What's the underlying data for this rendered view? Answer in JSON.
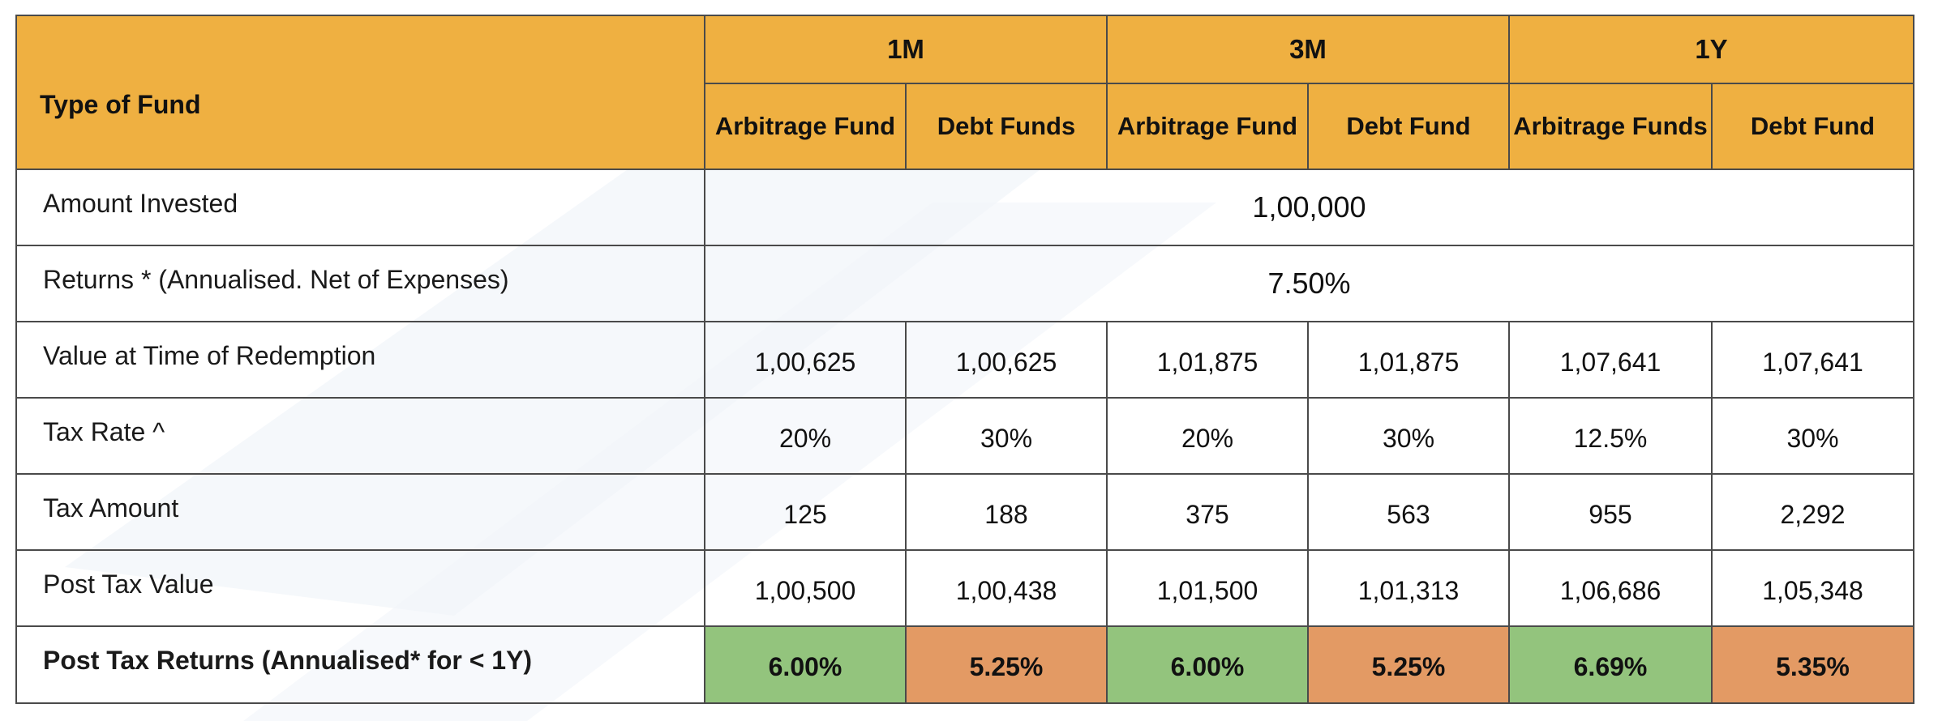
{
  "colors": {
    "header_bg": "#efb041",
    "positive_bg": "#93c47d",
    "negative_bg": "#e39a64",
    "border": "#4a4a4a"
  },
  "header": {
    "type_label": "Type of Fund",
    "periods": [
      "1M",
      "3M",
      "1Y"
    ],
    "subheads": [
      "Arbitrage Fund",
      "Debt Funds",
      "Arbitrage Fund",
      "Debt Fund",
      "Arbitrage Funds",
      "Debt Fund"
    ]
  },
  "rows": {
    "amount_invested": {
      "label": "Amount Invested",
      "value": "1,00,000"
    },
    "returns": {
      "label": "Returns * (Annualised. Net of Expenses)",
      "value": "7.50%"
    },
    "value_redemption": {
      "label": "Value at Time of Redemption",
      "values": [
        "1,00,625",
        "1,00,625",
        "1,01,875",
        "1,01,875",
        "1,07,641",
        "1,07,641"
      ]
    },
    "tax_rate": {
      "label": "Tax Rate ^",
      "values": [
        "20%",
        "30%",
        "20%",
        "30%",
        "12.5%",
        "30%"
      ]
    },
    "tax_amount": {
      "label": "Tax Amount",
      "values": [
        "125",
        "188",
        "375",
        "563",
        "955",
        "2,292"
      ]
    },
    "post_tax_value": {
      "label": "Post Tax Value",
      "values": [
        "1,00,500",
        "1,00,438",
        "1,01,500",
        "1,01,313",
        "1,06,686",
        "1,05,348"
      ]
    },
    "post_tax_returns": {
      "label": "Post Tax Returns (Annualised* for < 1Y)",
      "values": [
        "6.00%",
        "5.25%",
        "6.00%",
        "5.25%",
        "6.69%",
        "5.35%"
      ]
    }
  }
}
